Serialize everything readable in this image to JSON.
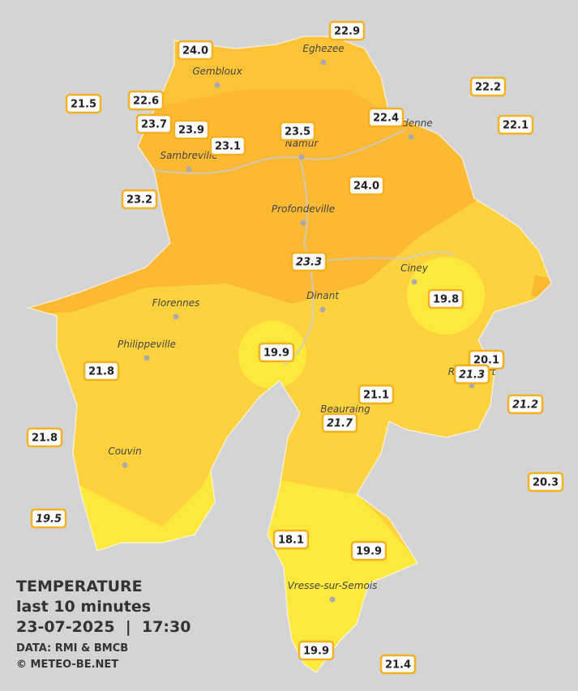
{
  "stations": [
    "22.9",
    "24.0",
    "22.2",
    "21.5",
    "22.6",
    "23.7",
    "23.9",
    "23.1",
    "23.5",
    "22.4",
    "22.1",
    "24.0",
    "23.2",
    "23.3",
    "19.8",
    "19.9",
    "20.1",
    "21.3",
    "21.8",
    "21.1",
    "21.2",
    "21.7",
    "21.8",
    "20.3",
    "19.5",
    "18.1",
    "19.9",
    "19.9",
    "21.4"
  ],
  "towns": [
    "Eghezee",
    "Gembloux",
    "Andenne",
    "Namur",
    "Sambreville",
    "Profondeville",
    "Ciney",
    "Dinant",
    "Florennes",
    "Philippeville",
    "Rochefort",
    "Beauraing",
    "Couvin",
    "Vresse-sur-Semois"
  ],
  "caption": {
    "title": "TEMPERATURE",
    "subtitle": "last 10 minutes",
    "datetime": "23-07-2025  |  17:30",
    "source": "DATA: RMI & BMCB",
    "credit": "© METEO-BE.NET"
  }
}
